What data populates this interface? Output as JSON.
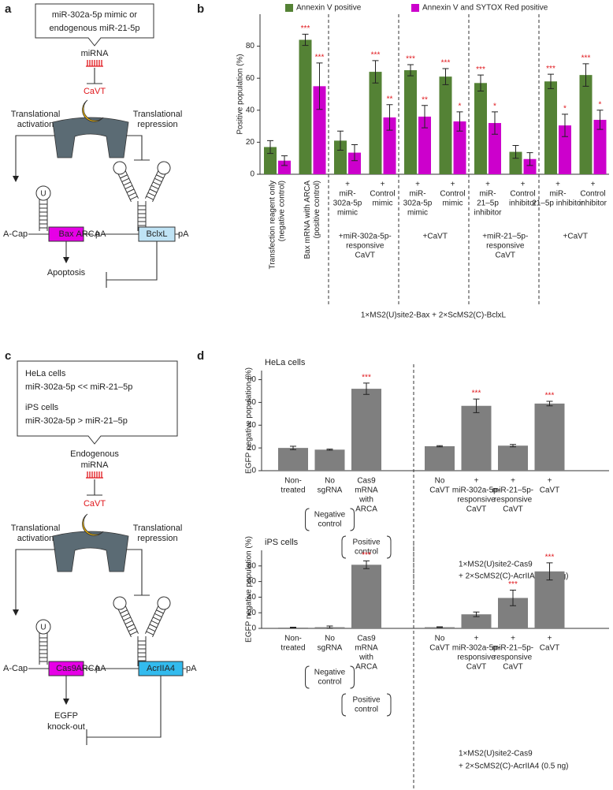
{
  "panel_labels": [
    "a",
    "b",
    "c",
    "d"
  ],
  "diagram_a": {
    "callout": [
      "miR-302a-5p mimic or",
      "endogenous miR-21-5p"
    ],
    "mirna": "miRNA",
    "cavt": "CaVT",
    "activation": [
      "Translational",
      "activation"
    ],
    "repression": [
      "Translational",
      "repression"
    ],
    "loop_base": "U",
    "cap": "A-Cap",
    "gene_on": "Bax",
    "polya_on": "pA",
    "arca": "ARCA",
    "gene_off": "BclxL",
    "polya_off": "pA",
    "outcome": "Apoptosis"
  },
  "diagram_c": {
    "callout": [
      "HeLa cells",
      "miR-302a-5p << miR-21–5p",
      "iPS cells",
      "miR-302a-5p > miR-21–5p"
    ],
    "mirna": [
      "Endogenous",
      "miRNA"
    ],
    "cavt": "CaVT",
    "activation": [
      "Translational",
      "activation"
    ],
    "repression": [
      "Translational",
      "repression"
    ],
    "loop_base": "U",
    "cap": "A-Cap",
    "gene_on": "Cas9",
    "polya_on": "pA",
    "arca": "ARCA",
    "gene_off": "AcrIIA4",
    "polya_off": "pA",
    "outcome": [
      "EGFP",
      "knock-out"
    ]
  },
  "chart_data": [
    {
      "type": "bar",
      "y_label": "Positive population (%)",
      "categories": [
        [
          "Transfection reagent only",
          "(negative control)"
        ],
        [
          "Bax mRNA with ARCA",
          "(positive control)"
        ],
        [
          "+",
          "miR-",
          "302a-5p",
          "mimic"
        ],
        [
          "+",
          "Control",
          "mimic"
        ],
        [
          "+",
          "miR-",
          "302a-5p",
          "mimic"
        ],
        [
          "+",
          "Control",
          "mimic"
        ],
        [
          "+",
          "miR-",
          "21–5p",
          "inhibitor"
        ],
        [
          "+",
          "Control",
          "inhibitor"
        ],
        [
          "+",
          "miR-",
          "21–5p inhibitor"
        ],
        [
          "+",
          "Control",
          "inhibitor"
        ]
      ],
      "groups": [
        [
          "+miR-302a-5p-",
          "responsive",
          "CaVT"
        ],
        [
          "+CaVT"
        ],
        [
          "+miR-21–5p-",
          "responsive",
          "CaVT"
        ],
        [
          "+CaVT"
        ]
      ],
      "footer": "1×MS2(U)site2-Bax + 2×ScMS2(C)-BclxL",
      "series": [
        {
          "name": "Annexin V positive",
          "color": "#548235",
          "values": [
            17,
            84,
            21,
            64,
            65,
            61,
            57,
            14,
            58,
            62
          ],
          "errors": [
            4,
            3.5,
            6,
            7,
            3.5,
            5,
            5,
            4,
            4.5,
            7
          ],
          "annotations": [
            null,
            "***",
            null,
            "***",
            "***",
            "***",
            "***",
            null,
            "***",
            "***"
          ]
        },
        {
          "name": "Annexin V and SYTOX Red positive",
          "color": "#cc00cc",
          "values": [
            8.5,
            55,
            13.5,
            35.5,
            36,
            33,
            32,
            9.5,
            30.5,
            34
          ],
          "errors": [
            3,
            14.5,
            5,
            8,
            7,
            6,
            7,
            4,
            7,
            6
          ],
          "annotations": [
            null,
            "***",
            null,
            "**",
            "**",
            "*",
            "*",
            null,
            "*",
            "*"
          ]
        }
      ],
      "annotation_color": "#e0161b",
      "ylim": [
        0,
        100
      ],
      "yticks": [
        0,
        20,
        40,
        60,
        80
      ],
      "legend": "top"
    },
    {
      "type": "bar",
      "subtitle": "HeLa cells",
      "y_label": "EGFP negative population (%)",
      "categories": [
        [
          "Non-",
          "treated"
        ],
        [
          "No",
          "sgRNA"
        ],
        [
          "Cas9",
          "mRNA",
          "with",
          "ARCA"
        ],
        [
          "No",
          "CaVT"
        ],
        [
          "+",
          "miR-302a-5p-",
          "responsive",
          "CaVT"
        ],
        [
          "+",
          "miR-21–5p-",
          "responsive",
          "CaVT"
        ],
        [
          "+",
          "CaVT"
        ]
      ],
      "brackets": [
        [
          "Negative",
          "control"
        ],
        [
          "Positive",
          "control"
        ]
      ],
      "footer": [
        "1×MS2(U)site2-Cas9",
        "+ 2×ScMS2(C)-AcrIIA4 (0.5 ng)"
      ],
      "color": "#7f7f7f",
      "values": [
        20,
        18.5,
        72,
        21.5,
        57,
        22,
        59
      ],
      "errors": [
        1.5,
        0.5,
        5,
        0.5,
        6,
        1,
        2
      ],
      "annotations": [
        null,
        null,
        "***",
        null,
        "***",
        null,
        "***"
      ],
      "annotation_color": "#e0161b",
      "ylim": [
        0,
        88
      ],
      "yticks": [
        0,
        20,
        40,
        60,
        80
      ]
    },
    {
      "type": "bar",
      "subtitle": "iPS cells",
      "y_label": "EGFP negative population (%)",
      "categories": [
        [
          "Non-",
          "treated"
        ],
        [
          "No",
          "sgRNA"
        ],
        [
          "Cas9",
          "mRNA",
          "with",
          "ARCA"
        ],
        [
          "No",
          "CaVT"
        ],
        [
          "+",
          "miR-302a-5p-",
          "responsive",
          "CaVT"
        ],
        [
          "+",
          "miR-21–5p-",
          "responsive",
          "CaVT"
        ],
        [
          "+",
          "CaVT"
        ]
      ],
      "brackets": [
        [
          "Negative",
          "control"
        ],
        [
          "Positive",
          "control"
        ]
      ],
      "footer": [
        "1×MS2(U)site2-Cas9",
        "+ 2×ScMS2(C)-AcrIIA4 (0.5 ng)"
      ],
      "color": "#7f7f7f",
      "values": [
        1,
        1.5,
        81.5,
        1.5,
        18,
        39,
        73
      ],
      "errors": [
        0.5,
        1.5,
        5,
        0.5,
        3,
        10,
        11
      ],
      "annotations": [
        null,
        null,
        "***",
        null,
        null,
        "***",
        "***"
      ],
      "annotation_color": "#e0161b",
      "ylim": [
        0,
        100
      ],
      "yticks": [
        0,
        20,
        40,
        60,
        80
      ]
    }
  ]
}
